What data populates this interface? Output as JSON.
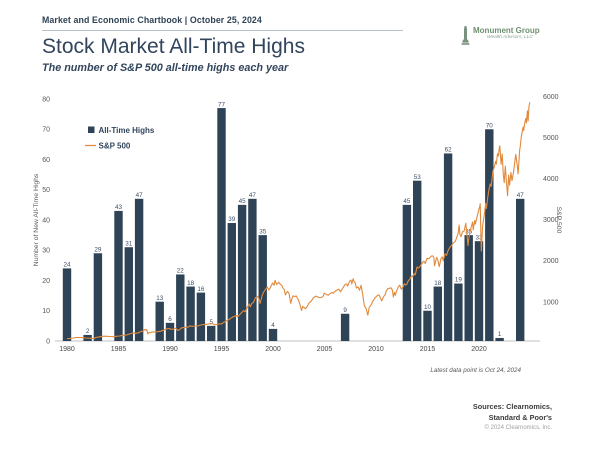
{
  "header": {
    "kicker": "Market and Economic Chartbook | October 25, 2024",
    "title": "Stock Market All-Time Highs",
    "subtitle": "The number of S&P 500 all-time highs each year",
    "logo": {
      "name": "Monument Group",
      "subname": "Wealth Advisors, LLC"
    }
  },
  "footnote": "Latest data point is Oct 24, 2024",
  "sources": {
    "line1": "Sources: Clearnomics,",
    "line2": "Standard & Poor's",
    "copyright": "© 2024 Clearnomics, Inc."
  },
  "colors": {
    "bar": "#2e4356",
    "bar_label": "#3c4f63",
    "line": "#e18a3c",
    "axis_text": "#555555",
    "axis_line": "#c0c0c0",
    "navy": "#32455c",
    "green": "#6f9070"
  },
  "chart_data": {
    "type": "bar+line",
    "title": "Stock Market All-Time Highs",
    "subtitle": "The number of S&P 500 all-time highs each year",
    "legend": [
      {
        "label": "All-Time Highs",
        "type": "bar",
        "color": "#2e4356"
      },
      {
        "label": "S&P 500",
        "type": "line",
        "color": "#e18a3c"
      }
    ],
    "left_axis": {
      "label": "Number of New All-Time Highs",
      "ticks": [
        0,
        10,
        20,
        30,
        40,
        50,
        60,
        70,
        80
      ],
      "range": [
        0,
        80
      ],
      "grid": false
    },
    "right_axis": {
      "label": "S&P 500",
      "ticks": [
        1000,
        2000,
        3000,
        4000,
        5000,
        6000
      ],
      "range": [
        0,
        6200
      ]
    },
    "x_axis": {
      "ticks": [
        1980,
        1985,
        1990,
        1995,
        2000,
        2005,
        2010,
        2015,
        2020
      ],
      "range": [
        1979,
        2025
      ]
    },
    "bars": {
      "years": [
        1980,
        1981,
        1982,
        1983,
        1984,
        1985,
        1986,
        1987,
        1988,
        1989,
        1990,
        1991,
        1992,
        1993,
        1994,
        1995,
        1996,
        1997,
        1998,
        1999,
        2000,
        2001,
        2002,
        2003,
        2004,
        2005,
        2006,
        2007,
        2008,
        2009,
        2010,
        2011,
        2012,
        2013,
        2014,
        2015,
        2016,
        2017,
        2018,
        2019,
        2020,
        2021,
        2022,
        2023,
        2024
      ],
      "values": [
        24,
        0,
        2,
        29,
        0,
        43,
        31,
        47,
        0,
        13,
        6,
        22,
        18,
        16,
        5,
        77,
        39,
        45,
        47,
        35,
        4,
        0,
        0,
        0,
        0,
        0,
        0,
        9,
        0,
        0,
        0,
        0,
        0,
        45,
        53,
        10,
        18,
        62,
        19,
        35,
        33,
        70,
        1,
        0,
        47
      ]
    },
    "sp500_line": [
      [
        1980,
        108
      ],
      [
        1980.3,
        112
      ],
      [
        1980.6,
        122
      ],
      [
        1980.9,
        133
      ],
      [
        1981.2,
        134
      ],
      [
        1981.5,
        131
      ],
      [
        1981.8,
        122
      ],
      [
        1982.1,
        116
      ],
      [
        1982.4,
        111
      ],
      [
        1982.6,
        107
      ],
      [
        1982.8,
        133
      ],
      [
        1983.1,
        148
      ],
      [
        1983.4,
        160
      ],
      [
        1983.6,
        166
      ],
      [
        1983.9,
        164
      ],
      [
        1984.2,
        157
      ],
      [
        1984.5,
        153
      ],
      [
        1984.8,
        163
      ],
      [
        1985.1,
        171
      ],
      [
        1985.4,
        184
      ],
      [
        1985.7,
        192
      ],
      [
        1985.95,
        207
      ],
      [
        1986.2,
        232
      ],
      [
        1986.45,
        247
      ],
      [
        1986.6,
        234
      ],
      [
        1986.9,
        246
      ],
      [
        1987.1,
        270
      ],
      [
        1987.35,
        292
      ],
      [
        1987.6,
        330
      ],
      [
        1987.68,
        315
      ],
      [
        1987.74,
        325
      ],
      [
        1987.85,
        225
      ],
      [
        1987.95,
        247
      ],
      [
        1988.2,
        262
      ],
      [
        1988.5,
        270
      ],
      [
        1988.8,
        274
      ],
      [
        1989.1,
        288
      ],
      [
        1989.4,
        312
      ],
      [
        1989.7,
        345
      ],
      [
        1989.95,
        353
      ],
      [
        1990.1,
        332
      ],
      [
        1990.35,
        340
      ],
      [
        1990.55,
        362
      ],
      [
        1990.75,
        306
      ],
      [
        1990.95,
        325
      ],
      [
        1991.1,
        368
      ],
      [
        1991.3,
        374
      ],
      [
        1991.5,
        380
      ],
      [
        1991.75,
        388
      ],
      [
        1991.95,
        415
      ],
      [
        1992.2,
        406
      ],
      [
        1992.5,
        412
      ],
      [
        1992.75,
        418
      ],
      [
        1992.95,
        435
      ],
      [
        1993.2,
        450
      ],
      [
        1993.45,
        447
      ],
      [
        1993.7,
        459
      ],
      [
        1993.95,
        467
      ],
      [
        1994.1,
        478
      ],
      [
        1994.3,
        446
      ],
      [
        1994.55,
        453
      ],
      [
        1994.8,
        468
      ],
      [
        1994.95,
        459
      ],
      [
        1995.15,
        490
      ],
      [
        1995.4,
        525
      ],
      [
        1995.65,
        562
      ],
      [
        1995.9,
        600
      ],
      [
        1996.1,
        633
      ],
      [
        1996.3,
        652
      ],
      [
        1996.5,
        668
      ],
      [
        1996.56,
        635
      ],
      [
        1996.8,
        695
      ],
      [
        1996.95,
        740
      ],
      [
        1997.15,
        790
      ],
      [
        1997.3,
        760
      ],
      [
        1997.55,
        890
      ],
      [
        1997.7,
        950
      ],
      [
        1997.8,
        880
      ],
      [
        1997.95,
        965
      ],
      [
        1998.1,
        985
      ],
      [
        1998.3,
        1105
      ],
      [
        1998.5,
        1130
      ],
      [
        1998.62,
        1085
      ],
      [
        1998.75,
        960
      ],
      [
        1998.95,
        1165
      ],
      [
        1999.1,
        1240
      ],
      [
        1999.25,
        1300
      ],
      [
        1999.45,
        1360
      ],
      [
        1999.6,
        1290
      ],
      [
        1999.75,
        1350
      ],
      [
        1999.95,
        1460
      ],
      [
        2000.1,
        1405
      ],
      [
        2000.2,
        1525
      ],
      [
        2000.35,
        1420
      ],
      [
        2000.55,
        1480
      ],
      [
        2000.7,
        1430
      ],
      [
        2000.85,
        1400
      ],
      [
        2000.98,
        1330
      ],
      [
        2001.1,
        1300
      ],
      [
        2001.2,
        1170
      ],
      [
        2001.4,
        1255
      ],
      [
        2001.55,
        1210
      ],
      [
        2001.72,
        966
      ],
      [
        2001.85,
        1090
      ],
      [
        2001.95,
        1148
      ],
      [
        2002.1,
        1130
      ],
      [
        2002.25,
        1147
      ],
      [
        2002.45,
        1050
      ],
      [
        2002.6,
        950
      ],
      [
        2002.78,
        790
      ],
      [
        2002.87,
        890
      ],
      [
        2002.97,
        870
      ],
      [
        2003.15,
        835
      ],
      [
        2003.3,
        875
      ],
      [
        2003.5,
        975
      ],
      [
        2003.7,
        1015
      ],
      [
        2003.95,
        1110
      ],
      [
        2004.2,
        1140
      ],
      [
        2004.45,
        1108
      ],
      [
        2004.65,
        1105
      ],
      [
        2004.85,
        1130
      ],
      [
        2004.98,
        1212
      ],
      [
        2005.2,
        1180
      ],
      [
        2005.35,
        1160
      ],
      [
        2005.55,
        1205
      ],
      [
        2005.75,
        1230
      ],
      [
        2005.85,
        1210
      ],
      [
        2005.98,
        1248
      ],
      [
        2006.2,
        1290
      ],
      [
        2006.4,
        1310
      ],
      [
        2006.55,
        1245
      ],
      [
        2006.78,
        1335
      ],
      [
        2006.98,
        1418
      ],
      [
        2007.15,
        1438
      ],
      [
        2007.25,
        1385
      ],
      [
        2007.45,
        1505
      ],
      [
        2007.57,
        1530
      ],
      [
        2007.65,
        1435
      ],
      [
        2007.78,
        1562
      ],
      [
        2007.9,
        1480
      ],
      [
        2007.98,
        1468
      ],
      [
        2008.1,
        1335
      ],
      [
        2008.25,
        1368
      ],
      [
        2008.4,
        1285
      ],
      [
        2008.55,
        1405
      ],
      [
        2008.72,
        1165
      ],
      [
        2008.87,
        900
      ],
      [
        2008.97,
        875
      ],
      [
        2009.05,
        828
      ],
      [
        2009.2,
        680
      ],
      [
        2009.35,
        872
      ],
      [
        2009.5,
        920
      ],
      [
        2009.7,
        1020
      ],
      [
        2009.9,
        1098
      ],
      [
        2010.1,
        1145
      ],
      [
        2010.28,
        1172
      ],
      [
        2010.45,
        1090
      ],
      [
        2010.55,
        1025
      ],
      [
        2010.72,
        1122
      ],
      [
        2010.9,
        1185
      ],
      [
        2010.98,
        1258
      ],
      [
        2011.15,
        1320
      ],
      [
        2011.3,
        1332
      ],
      [
        2011.45,
        1345
      ],
      [
        2011.6,
        1285
      ],
      [
        2011.68,
        1120
      ],
      [
        2011.8,
        1230
      ],
      [
        2011.88,
        1160
      ],
      [
        2011.98,
        1258
      ],
      [
        2012.15,
        1352
      ],
      [
        2012.3,
        1408
      ],
      [
        2012.45,
        1312
      ],
      [
        2012.62,
        1362
      ],
      [
        2012.75,
        1442
      ],
      [
        2012.87,
        1408
      ],
      [
        2012.98,
        1426
      ],
      [
        2013.12,
        1505
      ],
      [
        2013.3,
        1562
      ],
      [
        2013.45,
        1632
      ],
      [
        2013.55,
        1608
      ],
      [
        2013.72,
        1695
      ],
      [
        2013.82,
        1658
      ],
      [
        2013.98,
        1848
      ],
      [
        2014.12,
        1822
      ],
      [
        2014.3,
        1872
      ],
      [
        2014.5,
        1952
      ],
      [
        2014.65,
        1992
      ],
      [
        2014.78,
        1935
      ],
      [
        2014.95,
        2060
      ],
      [
        2015.15,
        2052
      ],
      [
        2015.35,
        2112
      ],
      [
        2015.5,
        2122
      ],
      [
        2015.62,
        2078
      ],
      [
        2015.68,
        1880
      ],
      [
        2015.8,
        1992
      ],
      [
        2015.88,
        2080
      ],
      [
        2015.98,
        2044
      ],
      [
        2016.1,
        1905
      ],
      [
        2016.15,
        1860
      ],
      [
        2016.3,
        2052
      ],
      [
        2016.45,
        2095
      ],
      [
        2016.52,
        2002
      ],
      [
        2016.7,
        2172
      ],
      [
        2016.85,
        2132
      ],
      [
        2016.98,
        2239
      ],
      [
        2017.15,
        2320
      ],
      [
        2017.3,
        2362
      ],
      [
        2017.5,
        2432
      ],
      [
        2017.7,
        2475
      ],
      [
        2017.85,
        2582
      ],
      [
        2017.98,
        2674
      ],
      [
        2018.07,
        2872
      ],
      [
        2018.15,
        2650
      ],
      [
        2018.25,
        2588
      ],
      [
        2018.4,
        2705
      ],
      [
        2018.55,
        2722
      ],
      [
        2018.72,
        2912
      ],
      [
        2018.83,
        2655
      ],
      [
        2018.93,
        2370
      ],
      [
        2018.99,
        2507
      ],
      [
        2019.12,
        2705
      ],
      [
        2019.25,
        2832
      ],
      [
        2019.38,
        2945
      ],
      [
        2019.44,
        2752
      ],
      [
        2019.58,
        2982
      ],
      [
        2019.64,
        2890
      ],
      [
        2019.8,
        3050
      ],
      [
        2019.97,
        3230
      ],
      [
        2020.08,
        3330
      ],
      [
        2020.12,
        3386
      ],
      [
        2020.22,
        2237
      ],
      [
        2020.35,
        2852
      ],
      [
        2020.5,
        3100
      ],
      [
        2020.65,
        3398
      ],
      [
        2020.72,
        3270
      ],
      [
        2020.85,
        3550
      ],
      [
        2020.98,
        3756
      ],
      [
        2021.1,
        3870
      ],
      [
        2021.18,
        3812
      ],
      [
        2021.35,
        4180
      ],
      [
        2021.5,
        4300
      ],
      [
        2021.6,
        4422
      ],
      [
        2021.68,
        4350
      ],
      [
        2021.8,
        4605
      ],
      [
        2021.88,
        4550
      ],
      [
        2021.98,
        4766
      ],
      [
        2022.02,
        4796
      ],
      [
        2022.15,
        4350
      ],
      [
        2022.25,
        4602
      ],
      [
        2022.35,
        4132
      ],
      [
        2022.45,
        3900
      ],
      [
        2022.55,
        4305
      ],
      [
        2022.65,
        3955
      ],
      [
        2022.78,
        3585
      ],
      [
        2022.87,
        4082
      ],
      [
        2022.97,
        3840
      ],
      [
        2023.1,
        4150
      ],
      [
        2023.2,
        3950
      ],
      [
        2023.35,
        4152
      ],
      [
        2023.5,
        4452
      ],
      [
        2023.57,
        4589
      ],
      [
        2023.72,
        4302
      ],
      [
        2023.8,
        4117
      ],
      [
        2023.95,
        4700
      ],
      [
        2024.0,
        4770
      ],
      [
        2024.1,
        5000
      ],
      [
        2024.18,
        5120
      ],
      [
        2024.28,
        5254
      ],
      [
        2024.34,
        5170
      ],
      [
        2024.44,
        5352
      ],
      [
        2024.54,
        5462
      ],
      [
        2024.6,
        5352
      ],
      [
        2024.7,
        5650
      ],
      [
        2024.77,
        5402
      ],
      [
        2024.85,
        5762
      ],
      [
        2024.9,
        5820
      ],
      [
        2024.93,
        5860
      ]
    ],
    "annotations": [
      "Latest data point is Oct 24, 2024"
    ]
  }
}
